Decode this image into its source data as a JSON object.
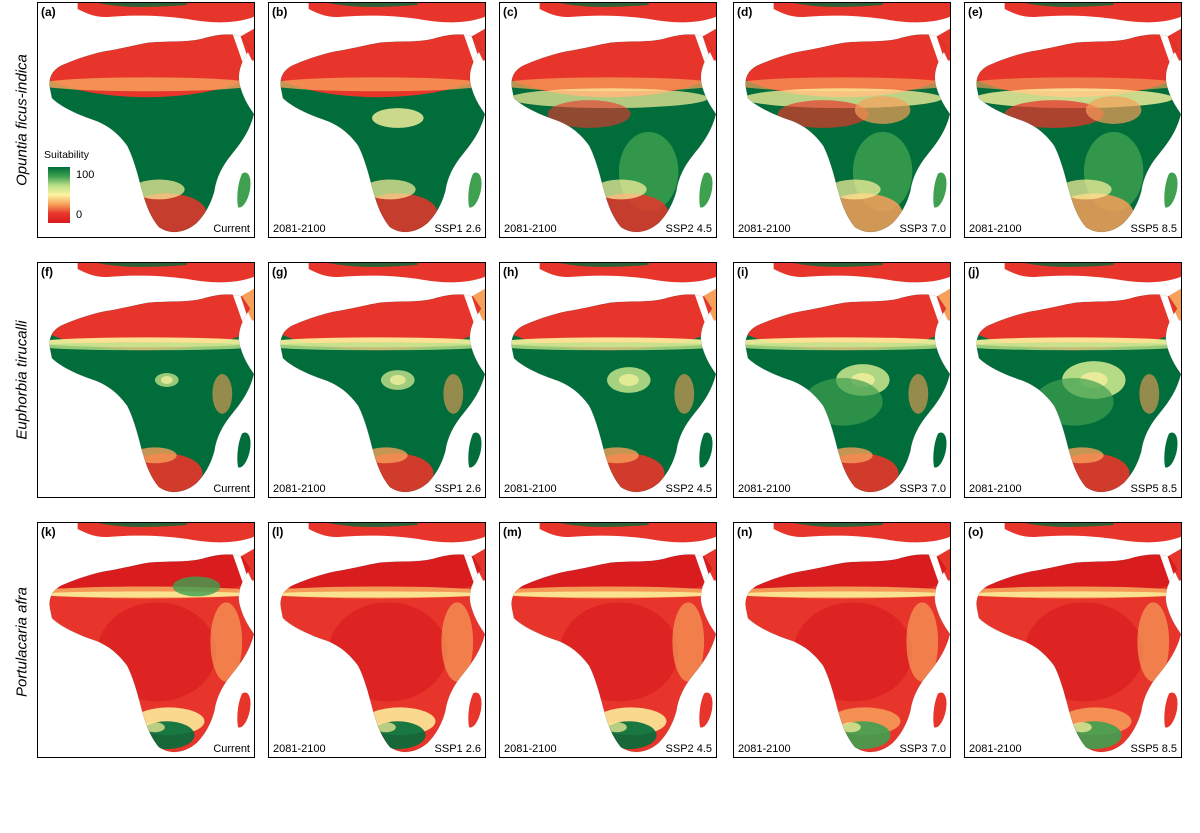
{
  "legend": {
    "title": "Suitability",
    "max": "100",
    "min": "0",
    "colors": [
      "#006d3a",
      "#3fa050",
      "#bde08a",
      "#fdf4a0",
      "#f6a05a",
      "#e8352b",
      "#d7191c"
    ]
  },
  "species": [
    "Opuntia ficus-indica",
    "Euphorbia tirucalli",
    "Portulacaria afra"
  ],
  "columns": [
    {
      "period": "",
      "scenario": "Current"
    },
    {
      "period": "2081-2100",
      "scenario": "SSP1 2.6"
    },
    {
      "period": "2081-2100",
      "scenario": "SSP2 4.5"
    },
    {
      "period": "2081-2100",
      "scenario": "SSP3 7.0"
    },
    {
      "period": "2081-2100",
      "scenario": "SSP5 8.5"
    }
  ],
  "panels": [
    {
      "letter": "(a)",
      "period": "",
      "scenario": "Current",
      "scheme": "opuntia",
      "level": 0
    },
    {
      "letter": "(b)",
      "period": "2081-2100",
      "scenario": "SSP1 2.6",
      "scheme": "opuntia",
      "level": 1
    },
    {
      "letter": "(c)",
      "period": "2081-2100",
      "scenario": "SSP2 4.5",
      "scheme": "opuntia",
      "level": 2
    },
    {
      "letter": "(d)",
      "period": "2081-2100",
      "scenario": "SSP3 7.0",
      "scheme": "opuntia",
      "level": 3
    },
    {
      "letter": "(e)",
      "period": "2081-2100",
      "scenario": "SSP5 8.5",
      "scheme": "opuntia",
      "level": 4
    },
    {
      "letter": "(f)",
      "period": "",
      "scenario": "Current",
      "scheme": "euphorbia",
      "level": 0
    },
    {
      "letter": "(g)",
      "period": "2081-2100",
      "scenario": "SSP1 2.6",
      "scheme": "euphorbia",
      "level": 1
    },
    {
      "letter": "(h)",
      "period": "2081-2100",
      "scenario": "SSP2 4.5",
      "scheme": "euphorbia",
      "level": 2
    },
    {
      "letter": "(i)",
      "period": "2081-2100",
      "scenario": "SSP3 7.0",
      "scheme": "euphorbia",
      "level": 3
    },
    {
      "letter": "(j)",
      "period": "2081-2100",
      "scenario": "SSP5 8.5",
      "scheme": "euphorbia",
      "level": 4
    },
    {
      "letter": "(k)",
      "period": "",
      "scenario": "Current",
      "scheme": "portulacaria",
      "level": 0
    },
    {
      "letter": "(l)",
      "period": "2081-2100",
      "scenario": "SSP1 2.6",
      "scheme": "portulacaria",
      "level": 1
    },
    {
      "letter": "(m)",
      "period": "2081-2100",
      "scenario": "SSP2 4.5",
      "scheme": "portulacaria",
      "level": 2
    },
    {
      "letter": "(n)",
      "period": "2081-2100",
      "scenario": "SSP3 7.0",
      "scheme": "portulacaria",
      "level": 3
    },
    {
      "letter": "(o)",
      "period": "2081-2100",
      "scenario": "SSP5 8.5",
      "scheme": "portulacaria",
      "level": 4
    }
  ]
}
